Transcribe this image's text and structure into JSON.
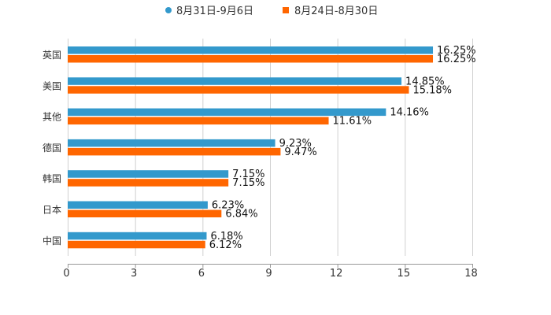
{
  "chart_data": {
    "type": "bar",
    "orientation": "horizontal",
    "title": "",
    "xlabel": "",
    "ylabel": "",
    "xlim": [
      0,
      18
    ],
    "xticks": [
      "0",
      "3",
      "6",
      "9",
      "12",
      "15",
      "18"
    ],
    "xtick_values": [
      0,
      3,
      6,
      9,
      12,
      15,
      18
    ],
    "grid": true,
    "legend_position": "top-center",
    "categories": [
      "英国",
      "美国",
      "其他",
      "德国",
      "韩国",
      "日本",
      "中国"
    ],
    "series": [
      {
        "name": "8月31日-9月6日",
        "color": "#3399cc",
        "values": [
          16.25,
          14.85,
          14.16,
          9.23,
          7.15,
          6.23,
          6.18
        ],
        "labels": [
          "16.25%",
          "14.85%",
          "14.16%",
          "9.23%",
          "7.15%",
          "6.23%",
          "6.18%"
        ]
      },
      {
        "name": "8月24日-8月30日",
        "color": "#ff6600",
        "values": [
          16.25,
          15.18,
          11.61,
          9.47,
          7.15,
          6.84,
          6.12
        ],
        "labels": [
          "16.25%",
          "15.18%",
          "11.61%",
          "9.47%",
          "7.15%",
          "6.84%",
          "6.12%"
        ]
      }
    ]
  }
}
